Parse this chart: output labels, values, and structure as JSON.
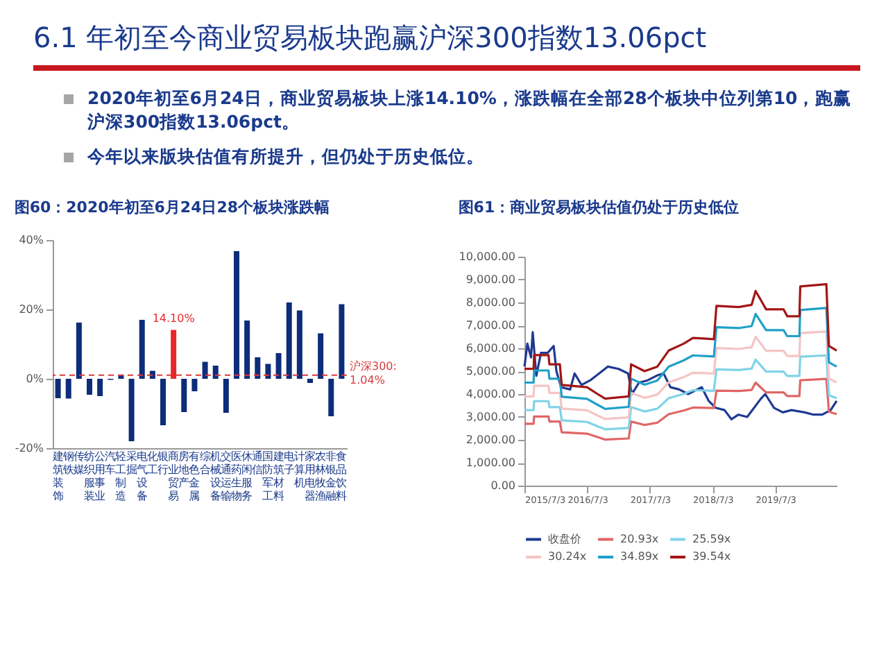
{
  "chart_data": [
    {
      "type": "other",
      "title": "6.1 年初至今商业贸易板块跑赢沪深300指数13.06pct",
      "annotations": [
        "2020年初至6月24日，商业贸易板块上涨14.10%，涨跌幅在全部28个板块中位列第10，跑赢沪深300指数13.06pct。",
        "今年以来版块估值有所提升，但仍处于历史低位。"
      ]
    },
    {
      "type": "bar",
      "title": "图60：2020年初至6月24日28个板块涨跌幅",
      "categories": [
        "建筑装饰",
        "钢铁",
        "传媒",
        "纺织服装",
        "公用事业",
        "汽车",
        "轻工制造",
        "采掘",
        "电气设备",
        "化工",
        "银行",
        "商业贸易",
        "房地产",
        "有色金属",
        "综合",
        "机械设备",
        "交通运输",
        "医药生物",
        "休闲服务",
        "通信",
        "国防军工",
        "建筑材料",
        "电子",
        "计算机",
        "家用电器",
        "农林牧渔",
        "非银金融",
        "食品饮料"
      ],
      "values": [
        -5.6,
        -5.7,
        16.2,
        -4.6,
        -5,
        -0.3,
        1.2,
        -18,
        17,
        2.3,
        -13.4,
        14.1,
        -9.6,
        -3.6,
        4.9,
        3.8,
        -9.8,
        36.8,
        16.8,
        6.2,
        4.3,
        7.4,
        22,
        19.7,
        -1.2,
        13.1,
        -10.8,
        21.5
      ],
      "colors": [
        "#0d2c7a",
        "#0d2c7a",
        "#0d2c7a",
        "#0d2c7a",
        "#0d2c7a",
        "#0d2c7a",
        "#0d2c7a",
        "#0d2c7a",
        "#0d2c7a",
        "#0d2c7a",
        "#0d2c7a",
        "#e8272a",
        "#0d2c7a",
        "#0d2c7a",
        "#0d2c7a",
        "#0d2c7a",
        "#0d2c7a",
        "#0d2c7a",
        "#0d2c7a",
        "#0d2c7a",
        "#0d2c7a",
        "#0d2c7a",
        "#0d2c7a",
        "#0d2c7a",
        "#0d2c7a",
        "#0d2c7a",
        "#0d2c7a",
        "#0d2c7a"
      ],
      "value_labels": [
        null,
        null,
        null,
        null,
        null,
        null,
        null,
        null,
        null,
        null,
        null,
        "14.10%",
        null,
        null,
        null,
        null,
        null,
        null,
        null,
        null,
        null,
        null,
        null,
        null,
        null,
        null,
        null,
        null
      ],
      "ylim": [
        -20,
        40
      ],
      "yticks": [
        {
          "value": -20,
          "label": "-20%"
        },
        {
          "value": 0,
          "label": "0%"
        },
        {
          "value": 20,
          "label": "20%"
        },
        {
          "value": 40,
          "label": "40%"
        }
      ],
      "ref_lines": [
        {
          "axis": "y",
          "value": 1.04,
          "label": "沪深300:\n1.04%",
          "color": "#d9383a",
          "line_style": "dashed"
        }
      ],
      "grid": false,
      "legend": false
    },
    {
      "type": "line",
      "title": "图61：商业贸易板块估值仍处于历史低位",
      "legend": "bottom",
      "grid": false,
      "xlim": [
        "2015-07-03",
        "2020-06-24"
      ],
      "xticks": [
        {
          "value": "2015-07-03",
          "label": "2015/7/3"
        },
        {
          "value": "2016-07-03",
          "label": "2016/7/3"
        },
        {
          "value": "2017-07-03",
          "label": "2017/7/3"
        },
        {
          "value": "2018-07-03",
          "label": "2018/7/3"
        },
        {
          "value": "2019-07-03",
          "label": "2019/7/3"
        }
      ],
      "ylim": [
        0,
        10000
      ],
      "yticks": [
        {
          "value": 0,
          "label": "0.00"
        },
        {
          "value": 1000,
          "label": "1,000.00"
        },
        {
          "value": 2000,
          "label": "2,000.00"
        },
        {
          "value": 3000,
          "label": "3,000.00"
        },
        {
          "value": 4000,
          "label": "4,000.00"
        },
        {
          "value": 5000,
          "label": "5,000.00"
        },
        {
          "value": 6000,
          "label": "6,000.00"
        },
        {
          "value": 7000,
          "label": "7,000.00"
        },
        {
          "value": 8000,
          "label": "8,000.00"
        },
        {
          "value": 9000,
          "label": "9,000.00"
        },
        {
          "value": 10000,
          "label": "10,000.00"
        }
      ],
      "series": [
        {
          "name": "收盘价",
          "color": "#1f3a93",
          "x": [
            "2015-07-03",
            "2015-07-20",
            "2015-08-10",
            "2015-08-20",
            "2015-09-10",
            "2015-10-07",
            "2015-11-15",
            "2015-12-20",
            "2016-01-05",
            "2016-02-01",
            "2016-03-25",
            "2016-04-20",
            "2016-05-30",
            "2016-07-20",
            "2016-09-10",
            "2016-10-30",
            "2017-01-01",
            "2017-02-25",
            "2017-03-20",
            "2017-04-30",
            "2017-06-20",
            "2017-08-10",
            "2017-09-20",
            "2017-10-30",
            "2017-12-20",
            "2018-02-10",
            "2018-04-30",
            "2018-06-10",
            "2018-07-20",
            "2018-09-10",
            "2018-10-20",
            "2018-11-30",
            "2019-01-20",
            "2019-04-10",
            "2019-05-05",
            "2019-06-25",
            "2019-08-15",
            "2019-10-05",
            "2019-12-20",
            "2020-02-10",
            "2020-04-01",
            "2020-05-20",
            "2020-06-24"
          ],
          "values": [
            5200,
            6200,
            5600,
            6700,
            4800,
            5800,
            5800,
            6100,
            5000,
            4300,
            4200,
            4900,
            4400,
            4600,
            4900,
            5200,
            5100,
            4900,
            4000,
            4500,
            4600,
            4800,
            4900,
            4300,
            4200,
            4000,
            4300,
            3700,
            3400,
            3300,
            2900,
            3100,
            3000,
            3800,
            4000,
            3400,
            3200,
            3300,
            3200,
            3100,
            3100,
            3300,
            3700
          ]
        },
        {
          "name": "20.93x",
          "color": "#e06666",
          "x": [
            "2015-07-03",
            "2015-08-25",
            "2015-08-28",
            "2015-11-20",
            "2015-11-25",
            "2016-01-25",
            "2016-02-05",
            "2016-07-01",
            "2016-09-01",
            "2016-10-15",
            "2017-03-01",
            "2017-03-15",
            "2017-06-01",
            "2017-08-15",
            "2017-10-20",
            "2018-01-15",
            "2018-03-10",
            "2018-07-10",
            "2018-07-25",
            "2018-12-01",
            "2019-02-15",
            "2019-03-10",
            "2019-04-10",
            "2019-05-10",
            "2019-08-20",
            "2019-09-10",
            "2019-11-20",
            "2019-11-25",
            "2020-04-25",
            "2020-05-10",
            "2020-06-24"
          ],
          "values": [
            2700,
            2700,
            3020,
            3020,
            2800,
            2800,
            2330,
            2270,
            2120,
            2010,
            2060,
            2800,
            2650,
            2750,
            3120,
            3280,
            3410,
            3390,
            4150,
            4130,
            4180,
            4500,
            4280,
            4070,
            4070,
            3910,
            3910,
            4600,
            4660,
            3230,
            3120
          ]
        },
        {
          "name": "25.59x",
          "color": "#7fd3e8",
          "x": [
            "2015-07-03",
            "2015-08-25",
            "2015-08-28",
            "2015-11-20",
            "2015-11-25",
            "2016-01-25",
            "2016-02-05",
            "2016-07-01",
            "2016-09-01",
            "2016-10-15",
            "2017-03-01",
            "2017-03-15",
            "2017-06-01",
            "2017-08-15",
            "2017-10-20",
            "2018-01-15",
            "2018-03-10",
            "2018-07-10",
            "2018-07-25",
            "2018-12-01",
            "2019-02-15",
            "2019-03-10",
            "2019-04-10",
            "2019-05-10",
            "2019-08-20",
            "2019-09-10",
            "2019-11-20",
            "2019-11-25",
            "2020-04-25",
            "2020-05-10",
            "2020-06-24"
          ],
          "values": [
            3300,
            3300,
            3690,
            3690,
            3430,
            3430,
            2850,
            2780,
            2590,
            2460,
            2520,
            3430,
            3240,
            3360,
            3820,
            4010,
            4170,
            4140,
            5080,
            5050,
            5110,
            5500,
            5240,
            4980,
            4980,
            4790,
            4790,
            5630,
            5690,
            3950,
            3820
          ]
        },
        {
          "name": "30.24x",
          "color": "#f5c4c4",
          "x": [
            "2015-07-03",
            "2015-08-25",
            "2015-08-28",
            "2015-11-20",
            "2015-11-25",
            "2016-01-25",
            "2016-02-05",
            "2016-07-01",
            "2016-09-01",
            "2016-10-15",
            "2017-03-01",
            "2017-03-15",
            "2017-06-01",
            "2017-08-15",
            "2017-10-20",
            "2018-01-15",
            "2018-03-10",
            "2018-07-10",
            "2018-07-25",
            "2018-12-01",
            "2019-02-15",
            "2019-03-10",
            "2019-04-10",
            "2019-05-10",
            "2019-08-20",
            "2019-09-10",
            "2019-11-20",
            "2019-11-25",
            "2020-04-25",
            "2020-05-10",
            "2020-06-24"
          ],
          "values": [
            3900,
            3900,
            4360,
            4360,
            4050,
            4050,
            3370,
            3290,
            3060,
            2910,
            2980,
            4050,
            3830,
            3980,
            4510,
            4740,
            4930,
            4900,
            6010,
            5970,
            6040,
            6500,
            6200,
            5890,
            5890,
            5660,
            5660,
            6660,
            6730,
            4670,
            4510
          ]
        },
        {
          "name": "34.89x",
          "color": "#1fa0c8",
          "x": [
            "2015-07-03",
            "2015-08-25",
            "2015-08-28",
            "2015-11-20",
            "2015-11-25",
            "2016-01-25",
            "2016-02-05",
            "2016-07-01",
            "2016-09-01",
            "2016-10-15",
            "2017-03-01",
            "2017-03-15",
            "2017-06-01",
            "2017-08-15",
            "2017-10-20",
            "2018-01-15",
            "2018-03-10",
            "2018-07-10",
            "2018-07-25",
            "2018-12-01",
            "2019-02-15",
            "2019-03-10",
            "2019-04-10",
            "2019-05-10",
            "2019-08-20",
            "2019-09-10",
            "2019-11-20",
            "2019-11-25",
            "2020-04-25",
            "2020-05-10",
            "2020-06-24"
          ],
          "values": [
            4500,
            4500,
            5030,
            5030,
            4670,
            4670,
            3880,
            3790,
            3530,
            3350,
            3440,
            4670,
            4410,
            4590,
            5200,
            5470,
            5690,
            5640,
            6920,
            6880,
            6970,
            7500,
            7140,
            6790,
            6790,
            6530,
            6530,
            7670,
            7760,
            5380,
            5200
          ]
        },
        {
          "name": "39.54x",
          "color": "#a31515",
          "x": [
            "2015-07-03",
            "2015-08-25",
            "2015-08-28",
            "2015-11-20",
            "2015-11-25",
            "2016-01-25",
            "2016-02-05",
            "2016-07-01",
            "2016-09-01",
            "2016-10-15",
            "2017-03-01",
            "2017-03-15",
            "2017-06-01",
            "2017-08-15",
            "2017-10-20",
            "2018-01-15",
            "2018-03-10",
            "2018-07-10",
            "2018-07-25",
            "2018-12-01",
            "2019-02-15",
            "2019-03-10",
            "2019-04-10",
            "2019-05-10",
            "2019-08-20",
            "2019-09-10",
            "2019-11-20",
            "2019-11-25",
            "2020-04-25",
            "2020-05-10",
            "2020-06-24"
          ],
          "values": [
            5100,
            5100,
            5700,
            5700,
            5300,
            5300,
            4400,
            4300,
            4000,
            3800,
            3900,
            5300,
            5000,
            5200,
            5900,
            6200,
            6450,
            6400,
            7850,
            7800,
            7900,
            8500,
            8100,
            7700,
            7700,
            7400,
            7400,
            8700,
            8800,
            6100,
            5900
          ]
        }
      ]
    }
  ]
}
